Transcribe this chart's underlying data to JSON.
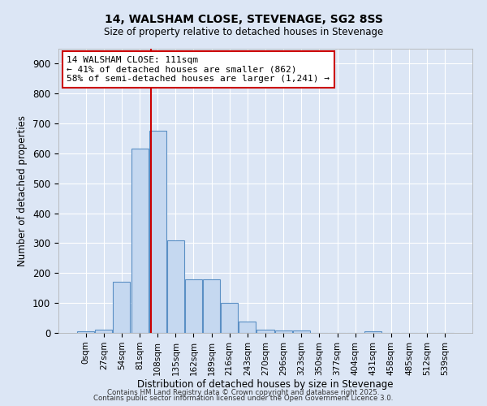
{
  "title1": "14, WALSHAM CLOSE, STEVENAGE, SG2 8SS",
  "title2": "Size of property relative to detached houses in Stevenage",
  "xlabel": "Distribution of detached houses by size in Stevenage",
  "ylabel": "Number of detached properties",
  "bar_labels": [
    "0sqm",
    "27sqm",
    "54sqm",
    "81sqm",
    "108sqm",
    "135sqm",
    "162sqm",
    "189sqm",
    "216sqm",
    "243sqm",
    "270sqm",
    "296sqm",
    "323sqm",
    "350sqm",
    "377sqm",
    "404sqm",
    "431sqm",
    "458sqm",
    "485sqm",
    "512sqm",
    "539sqm"
  ],
  "bar_values": [
    5,
    10,
    170,
    615,
    675,
    310,
    178,
    178,
    100,
    38,
    12,
    8,
    8,
    0,
    0,
    0,
    5,
    0,
    0,
    0,
    0
  ],
  "bar_color": "#c5d8f0",
  "bar_edge_color": "#5a8fc4",
  "background_color": "#dce6f5",
  "grid_color": "#ffffff",
  "annotation_text": "14 WALSHAM CLOSE: 111sqm\n← 41% of detached houses are smaller (862)\n58% of semi-detached houses are larger (1,241) →",
  "annotation_box_color": "#ffffff",
  "annotation_border_color": "#cc0000",
  "vline_color": "#cc0000",
  "ylim": [
    0,
    950
  ],
  "yticks": [
    0,
    100,
    200,
    300,
    400,
    500,
    600,
    700,
    800,
    900
  ],
  "footer1": "Contains HM Land Registry data © Crown copyright and database right 2025.",
  "footer2": "Contains public sector information licensed under the Open Government Licence 3.0.",
  "vline_index": 3.62
}
